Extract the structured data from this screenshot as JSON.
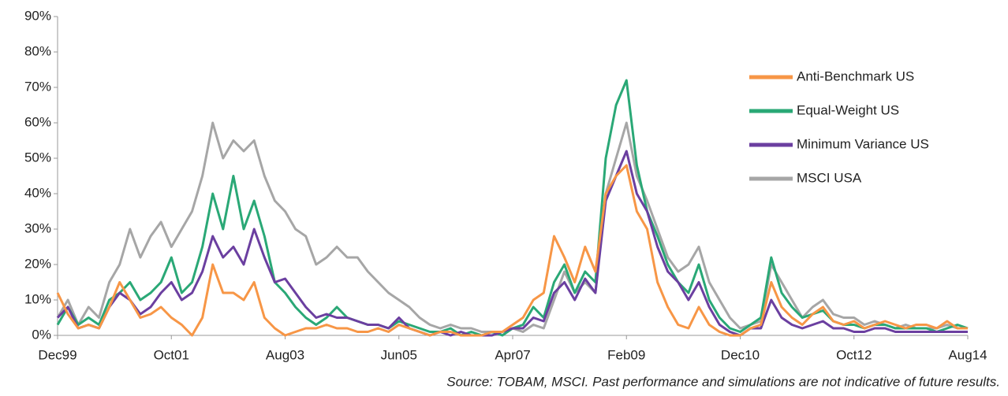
{
  "chart_data": {
    "type": "line",
    "source": "Source: TOBAM, MSCI. Past performance and simulations are not indicative of future results.",
    "categories": [
      "Dec99",
      null,
      null,
      null,
      null,
      null,
      null,
      null,
      null,
      null,
      null,
      "Oct01",
      null,
      null,
      null,
      null,
      null,
      null,
      null,
      null,
      null,
      null,
      "Aug03",
      null,
      null,
      null,
      null,
      null,
      null,
      null,
      null,
      null,
      null,
      "Jun05",
      null,
      null,
      null,
      null,
      null,
      null,
      null,
      null,
      null,
      null,
      "Apr07",
      null,
      null,
      null,
      null,
      null,
      null,
      null,
      null,
      null,
      null,
      "Feb09",
      null,
      null,
      null,
      null,
      null,
      null,
      null,
      null,
      null,
      null,
      "Dec10",
      null,
      null,
      null,
      null,
      null,
      null,
      null,
      null,
      null,
      null,
      "Oct12",
      null,
      null,
      null,
      null,
      null,
      null,
      null,
      null,
      null,
      null,
      "Aug14"
    ],
    "ylim": [
      0,
      90
    ],
    "yticks": [
      {
        "value": 0,
        "label": "0%"
      },
      {
        "value": 10,
        "label": "10%"
      },
      {
        "value": 20,
        "label": "20%"
      },
      {
        "value": 30,
        "label": "30%"
      },
      {
        "value": 40,
        "label": "40%"
      },
      {
        "value": 50,
        "label": "50%"
      },
      {
        "value": 60,
        "label": "60%"
      },
      {
        "value": 70,
        "label": "70%"
      },
      {
        "value": 80,
        "label": "80%"
      },
      {
        "value": 90,
        "label": "90%"
      }
    ],
    "grid": false,
    "legend": "right",
    "series": [
      {
        "name": "Anti-Benchmark US",
        "color": "#f79646",
        "values": [
          12,
          6,
          2,
          3,
          2,
          8,
          15,
          10,
          5,
          6,
          8,
          5,
          3,
          0,
          5,
          20,
          12,
          12,
          10,
          15,
          5,
          2,
          0,
          1,
          2,
          2,
          3,
          2,
          2,
          1,
          1,
          2,
          1,
          3,
          2,
          1,
          0,
          1,
          1,
          0,
          0,
          0,
          1,
          1,
          3,
          5,
          10,
          12,
          28,
          22,
          15,
          25,
          18,
          40,
          45,
          48,
          35,
          30,
          15,
          8,
          3,
          2,
          8,
          3,
          1,
          0,
          0,
          2,
          3,
          15,
          8,
          5,
          3,
          6,
          8,
          4,
          3,
          4,
          2,
          3,
          4,
          3,
          2,
          3,
          3,
          2,
          4,
          2,
          2
        ]
      },
      {
        "name": "Equal-Weight US",
        "color": "#2aa876",
        "values": [
          3,
          8,
          3,
          5,
          3,
          10,
          12,
          15,
          10,
          12,
          15,
          22,
          12,
          15,
          25,
          40,
          30,
          45,
          30,
          38,
          28,
          15,
          12,
          8,
          5,
          3,
          5,
          8,
          5,
          4,
          3,
          3,
          2,
          4,
          3,
          2,
          1,
          1,
          2,
          0,
          1,
          0,
          1,
          0,
          2,
          3,
          8,
          5,
          15,
          20,
          12,
          18,
          15,
          50,
          65,
          72,
          48,
          35,
          28,
          20,
          15,
          12,
          20,
          10,
          5,
          2,
          1,
          3,
          5,
          22,
          12,
          8,
          5,
          6,
          7,
          4,
          3,
          3,
          2,
          3,
          3,
          2,
          2,
          2,
          2,
          1,
          2,
          3,
          2
        ]
      },
      {
        "name": "Minimum Variance US",
        "color": "#6b3fa0",
        "values": [
          5,
          8,
          2,
          3,
          2,
          8,
          12,
          10,
          6,
          8,
          12,
          15,
          10,
          12,
          18,
          28,
          22,
          25,
          20,
          30,
          22,
          15,
          16,
          12,
          8,
          5,
          6,
          5,
          5,
          4,
          3,
          3,
          2,
          5,
          2,
          1,
          0,
          1,
          0,
          1,
          0,
          0,
          0,
          1,
          2,
          2,
          5,
          4,
          12,
          15,
          10,
          16,
          12,
          38,
          45,
          52,
          40,
          35,
          25,
          18,
          15,
          10,
          15,
          8,
          3,
          1,
          0,
          2,
          2,
          10,
          5,
          3,
          2,
          3,
          4,
          2,
          2,
          1,
          1,
          2,
          2,
          1,
          1,
          1,
          1,
          1,
          1,
          1,
          1
        ]
      },
      {
        "name": "MSCI USA",
        "color": "#a6a6a6",
        "values": [
          5,
          10,
          3,
          8,
          5,
          15,
          20,
          30,
          22,
          28,
          32,
          25,
          30,
          35,
          45,
          60,
          50,
          55,
          52,
          55,
          45,
          38,
          35,
          30,
          28,
          20,
          22,
          25,
          22,
          22,
          18,
          15,
          12,
          10,
          8,
          5,
          3,
          2,
          3,
          2,
          2,
          1,
          1,
          1,
          2,
          1,
          3,
          2,
          10,
          18,
          12,
          15,
          12,
          40,
          50,
          60,
          45,
          38,
          30,
          22,
          18,
          20,
          25,
          15,
          10,
          5,
          2,
          3,
          4,
          20,
          15,
          10,
          5,
          8,
          10,
          6,
          5,
          5,
          3,
          4,
          3,
          2,
          3,
          2,
          2,
          2,
          3,
          2,
          2
        ]
      }
    ]
  }
}
